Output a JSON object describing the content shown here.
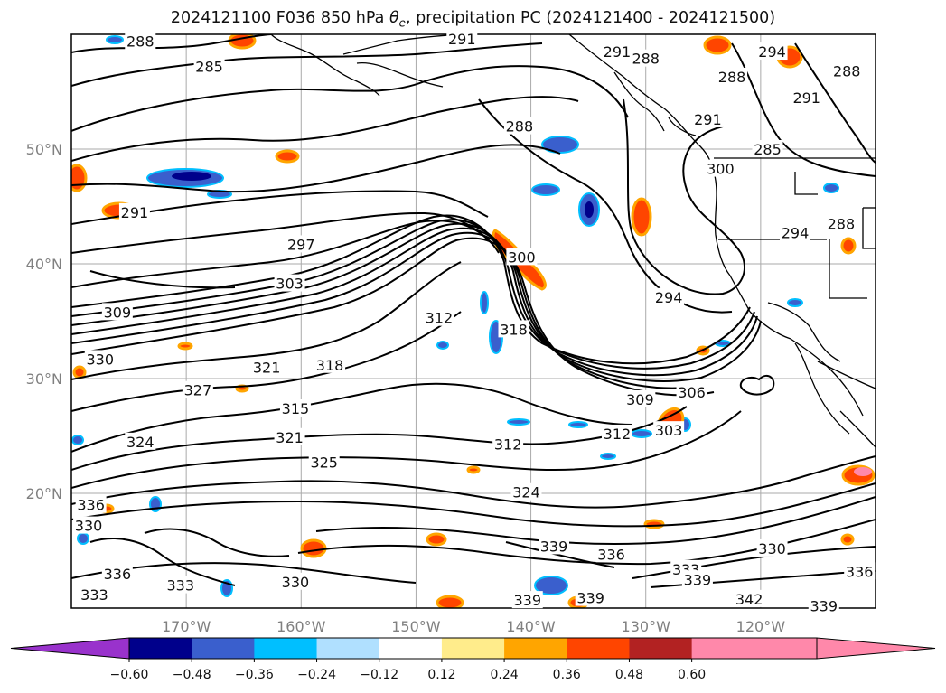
{
  "title": {
    "prefix": "2024121100 F036 850 hPa ",
    "theta": "θ",
    "theta_sub": "e",
    "suffix": ", precipitation PC (2024121400 - 2024121500)"
  },
  "map": {
    "lat_labels": [
      "50°N",
      "40°N",
      "30°N",
      "20°N"
    ],
    "lat_values": [
      50,
      40,
      30,
      20
    ],
    "lon_labels": [
      "170°W",
      "160°W",
      "150°W",
      "140°W",
      "130°W",
      "120°W"
    ],
    "lon_values": [
      -170,
      -160,
      -150,
      -140,
      -130,
      -120
    ],
    "lon_range": [
      -180,
      -110
    ],
    "lat_range": [
      10,
      60
    ],
    "contour_labels": [
      {
        "text": "288",
        "lon": -174,
        "lat": 59.4
      },
      {
        "text": "285",
        "lon": -168,
        "lat": 57.2
      },
      {
        "text": "291",
        "lon": -146,
        "lat": 59.6
      },
      {
        "text": "288",
        "lon": -141,
        "lat": 52.0
      },
      {
        "text": "291",
        "lon": -174.5,
        "lat": 44.5
      },
      {
        "text": "297",
        "lon": -160,
        "lat": 41.7
      },
      {
        "text": "303",
        "lon": -161,
        "lat": 38.3
      },
      {
        "text": "309",
        "lon": -176,
        "lat": 35.8
      },
      {
        "text": "312",
        "lon": -148,
        "lat": 35.3
      },
      {
        "text": "318",
        "lon": -157.5,
        "lat": 31.2
      },
      {
        "text": "321",
        "lon": -163,
        "lat": 31.0
      },
      {
        "text": "327",
        "lon": -169,
        "lat": 29.0
      },
      {
        "text": "330",
        "lon": -177.5,
        "lat": 31.7
      },
      {
        "text": "315",
        "lon": -160.5,
        "lat": 27.4
      },
      {
        "text": "321",
        "lon": -161,
        "lat": 24.9
      },
      {
        "text": "324",
        "lon": -174,
        "lat": 24.5
      },
      {
        "text": "325",
        "lon": -158,
        "lat": 22.7
      },
      {
        "text": "312",
        "lon": -142,
        "lat": 24.3
      },
      {
        "text": "324",
        "lon": -140.4,
        "lat": 20.1
      },
      {
        "text": "339",
        "lon": -138,
        "lat": 15.4
      },
      {
        "text": "336",
        "lon": -133,
        "lat": 14.7
      },
      {
        "text": "330",
        "lon": -160.5,
        "lat": 12.3
      },
      {
        "text": "336",
        "lon": -176,
        "lat": 13.0
      },
      {
        "text": "333",
        "lon": -178,
        "lat": 11.2
      },
      {
        "text": "330",
        "lon": -178.5,
        "lat": 17.2
      },
      {
        "text": "336",
        "lon": -178.3,
        "lat": 19.0
      },
      {
        "text": "333",
        "lon": -170.5,
        "lat": 12.0
      },
      {
        "text": "339",
        "lon": -140.3,
        "lat": 10.7
      },
      {
        "text": "339",
        "lon": -134.8,
        "lat": 10.9
      },
      {
        "text": "333",
        "lon": -126.5,
        "lat": 13.4
      },
      {
        "text": "339",
        "lon": -125.5,
        "lat": 12.5
      },
      {
        "text": "342",
        "lon": -121,
        "lat": 10.8
      },
      {
        "text": "330",
        "lon": -119,
        "lat": 15.2
      },
      {
        "text": "336",
        "lon": -111.4,
        "lat": 13.2
      },
      {
        "text": "339",
        "lon": -114.5,
        "lat": 10.2
      },
      {
        "text": "309",
        "lon": -130.5,
        "lat": 28.2
      },
      {
        "text": "306",
        "lon": -126,
        "lat": 28.8
      },
      {
        "text": "312",
        "lon": -132.5,
        "lat": 25.2
      },
      {
        "text": "303",
        "lon": -128,
        "lat": 25.5
      },
      {
        "text": "294",
        "lon": -128,
        "lat": 37.1
      },
      {
        "text": "300",
        "lon": -140.8,
        "lat": 40.6
      },
      {
        "text": "318",
        "lon": -141.5,
        "lat": 34.3
      },
      {
        "text": "291",
        "lon": -132.5,
        "lat": 58.5
      },
      {
        "text": "288",
        "lon": -130,
        "lat": 57.9
      },
      {
        "text": "288",
        "lon": -122.5,
        "lat": 56.3
      },
      {
        "text": "291",
        "lon": -124.6,
        "lat": 52.6
      },
      {
        "text": "285",
        "lon": -119.4,
        "lat": 50.0
      },
      {
        "text": "300",
        "lon": -123.5,
        "lat": 48.3
      },
      {
        "text": "294",
        "lon": -119,
        "lat": 58.5
      },
      {
        "text": "291",
        "lon": -116,
        "lat": 54.5
      },
      {
        "text": "294",
        "lon": -117,
        "lat": 42.7
      },
      {
        "text": "288",
        "lon": -112.5,
        "lat": 56.8
      },
      {
        "text": "288",
        "lon": -113,
        "lat": 43.5
      }
    ]
  },
  "colorbar": {
    "tick_labels": [
      "−0.60",
      "−0.48",
      "−0.36",
      "−0.24",
      "−0.12",
      "0.12",
      "0.24",
      "0.36",
      "0.48",
      "0.60"
    ],
    "colors": [
      "#9932cc",
      "#00008b",
      "#3a5fcd",
      "#00bfff",
      "#b0e0ff",
      "#ffffff",
      "#ffec8b",
      "#ffa500",
      "#ff4500",
      "#b22222",
      "#ff88aa",
      "#ff88aa"
    ],
    "under_color": "#9932cc",
    "over_color": "#ff88aa"
  },
  "colors": {
    "contour": "#000000",
    "grid": "#aaaaaa"
  }
}
